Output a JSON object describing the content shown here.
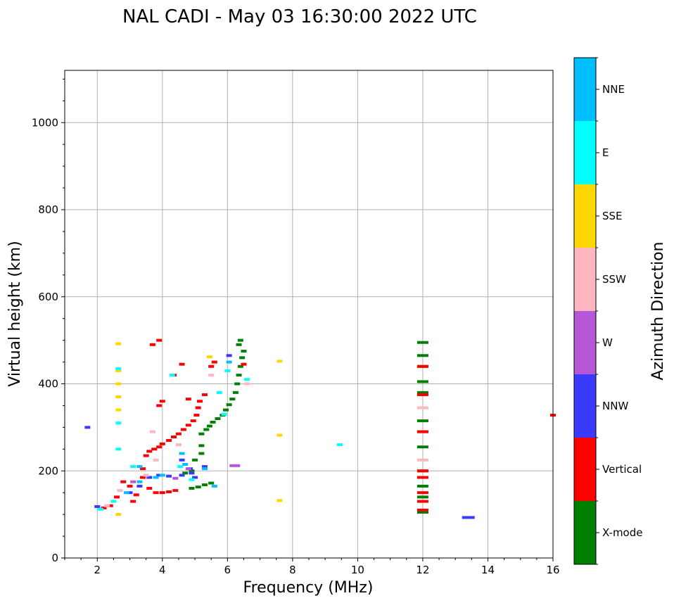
{
  "chart_data": {
    "type": "scatter",
    "title": "NAL CADI - May 03 16:30:00 2022 UTC",
    "xlabel": "Frequency (MHz)",
    "ylabel": "Virtual height (km)",
    "xlim": [
      1,
      16
    ],
    "ylim": [
      0,
      1120
    ],
    "xticks": [
      2,
      4,
      6,
      8,
      10,
      12,
      14,
      16
    ],
    "yticks": [
      0,
      200,
      400,
      600,
      800,
      1000
    ],
    "grid": true,
    "colorbar": {
      "label": "Azimuth Direction",
      "categories": [
        {
          "name": "X-mode",
          "color": "#008000"
        },
        {
          "name": "Vertical",
          "color": "#ff0000"
        },
        {
          "name": "NNW",
          "color": "#3a3aff"
        },
        {
          "name": "W",
          "color": "#b657d6"
        },
        {
          "name": "SSW",
          "color": "#ffb6c1"
        },
        {
          "name": "SSE",
          "color": "#ffd700"
        },
        {
          "name": "E",
          "color": "#00ffff"
        },
        {
          "name": "NNE",
          "color": "#00bfff"
        }
      ]
    },
    "series": [
      {
        "name": "X-mode",
        "points": [
          [
            4.9,
            160
          ],
          [
            5.1,
            163
          ],
          [
            5.3,
            168
          ],
          [
            5.5,
            172
          ],
          [
            4.7,
            195
          ],
          [
            4.9,
            200
          ],
          [
            5.0,
            225
          ],
          [
            5.2,
            240
          ],
          [
            5.2,
            258
          ],
          [
            5.2,
            285
          ],
          [
            5.35,
            295
          ],
          [
            5.45,
            303
          ],
          [
            5.55,
            312
          ],
          [
            5.7,
            320
          ],
          [
            5.85,
            328
          ],
          [
            5.95,
            340
          ],
          [
            6.05,
            352
          ],
          [
            6.15,
            365
          ],
          [
            6.25,
            380
          ],
          [
            6.3,
            400
          ],
          [
            6.35,
            420
          ],
          [
            6.4,
            440
          ],
          [
            6.45,
            460
          ],
          [
            6.5,
            475
          ],
          [
            6.35,
            490
          ],
          [
            6.4,
            500
          ],
          [
            12.0,
            105
          ],
          [
            12.0,
            140
          ],
          [
            12.0,
            165
          ],
          [
            12.0,
            200
          ],
          [
            12.0,
            255
          ],
          [
            12.0,
            290
          ],
          [
            12.0,
            315
          ],
          [
            12.0,
            380
          ],
          [
            12.0,
            405
          ],
          [
            12.0,
            440
          ],
          [
            12.0,
            465
          ],
          [
            12.0,
            495
          ]
        ]
      },
      {
        "name": "Vertical",
        "points": [
          [
            2.2,
            115
          ],
          [
            2.4,
            120
          ],
          [
            2.6,
            140
          ],
          [
            2.8,
            175
          ],
          [
            3.0,
            165
          ],
          [
            3.1,
            130
          ],
          [
            3.2,
            145
          ],
          [
            3.4,
            185
          ],
          [
            3.6,
            160
          ],
          [
            3.8,
            150
          ],
          [
            4.0,
            150
          ],
          [
            4.2,
            152
          ],
          [
            4.4,
            155
          ],
          [
            3.4,
            205
          ],
          [
            3.5,
            235
          ],
          [
            3.6,
            245
          ],
          [
            3.75,
            250
          ],
          [
            3.9,
            255
          ],
          [
            4.0,
            262
          ],
          [
            4.2,
            270
          ],
          [
            4.35,
            278
          ],
          [
            4.5,
            285
          ],
          [
            4.65,
            295
          ],
          [
            4.8,
            305
          ],
          [
            4.95,
            315
          ],
          [
            5.05,
            328
          ],
          [
            5.1,
            345
          ],
          [
            5.15,
            360
          ],
          [
            5.3,
            375
          ],
          [
            5.5,
            440
          ],
          [
            5.6,
            450
          ],
          [
            3.9,
            350
          ],
          [
            4.0,
            360
          ],
          [
            4.35,
            420
          ],
          [
            4.6,
            445
          ],
          [
            4.8,
            365
          ],
          [
            3.7,
            490
          ],
          [
            3.9,
            500
          ],
          [
            6.5,
            445
          ],
          [
            12.0,
            110
          ],
          [
            12.0,
            130
          ],
          [
            12.0,
            150
          ],
          [
            12.0,
            185
          ],
          [
            12.0,
            200
          ],
          [
            12.0,
            290
          ],
          [
            12.0,
            375
          ],
          [
            12.0,
            440
          ],
          [
            16.0,
            328
          ]
        ]
      },
      {
        "name": "NNW",
        "points": [
          [
            2.0,
            118
          ],
          [
            3.0,
            150
          ],
          [
            3.3,
            165
          ],
          [
            3.6,
            185
          ],
          [
            3.9,
            190
          ],
          [
            4.2,
            188
          ],
          [
            4.6,
            190
          ],
          [
            4.9,
            195
          ],
          [
            4.6,
            225
          ],
          [
            4.85,
            205
          ],
          [
            5.0,
            185
          ],
          [
            5.3,
            210
          ],
          [
            6.05,
            465
          ],
          [
            13.4,
            93
          ],
          [
            1.7,
            300
          ]
        ]
      },
      {
        "name": "W",
        "points": [
          [
            3.1,
            175
          ],
          [
            4.8,
            205
          ],
          [
            6.15,
            212
          ],
          [
            6.3,
            212
          ],
          [
            4.4,
            183
          ]
        ]
      },
      {
        "name": "SSW",
        "points": [
          [
            2.3,
            120
          ],
          [
            2.7,
            155
          ],
          [
            3.5,
            190
          ],
          [
            3.7,
            290
          ],
          [
            3.8,
            225
          ],
          [
            4.5,
            260
          ],
          [
            12.0,
            225
          ],
          [
            12.0,
            345
          ],
          [
            6.6,
            400
          ],
          [
            5.5,
            420
          ]
        ]
      },
      {
        "name": "SSE",
        "points": [
          [
            2.65,
            100
          ],
          [
            2.65,
            340
          ],
          [
            2.65,
            370
          ],
          [
            2.65,
            400
          ],
          [
            2.65,
            430
          ],
          [
            2.65,
            492
          ],
          [
            7.6,
            132
          ],
          [
            7.6,
            282
          ],
          [
            7.6,
            452
          ],
          [
            5.45,
            462
          ]
        ]
      },
      {
        "name": "E",
        "points": [
          [
            2.1,
            112
          ],
          [
            2.5,
            130
          ],
          [
            2.65,
            250
          ],
          [
            2.65,
            310
          ],
          [
            2.65,
            435
          ],
          [
            3.1,
            210
          ],
          [
            4.3,
            420
          ],
          [
            6.6,
            410
          ],
          [
            5.75,
            380
          ],
          [
            5.9,
            330
          ],
          [
            6.0,
            430
          ],
          [
            9.45,
            260
          ],
          [
            4.55,
            210
          ],
          [
            4.9,
            180
          ]
        ]
      },
      {
        "name": "NNE",
        "points": [
          [
            2.9,
            150
          ],
          [
            3.3,
            175
          ],
          [
            3.8,
            185
          ],
          [
            4.0,
            190
          ],
          [
            4.6,
            240
          ],
          [
            4.7,
            215
          ],
          [
            5.3,
            205
          ],
          [
            5.6,
            165
          ],
          [
            6.05,
            450
          ],
          [
            3.3,
            210
          ]
        ]
      }
    ]
  }
}
